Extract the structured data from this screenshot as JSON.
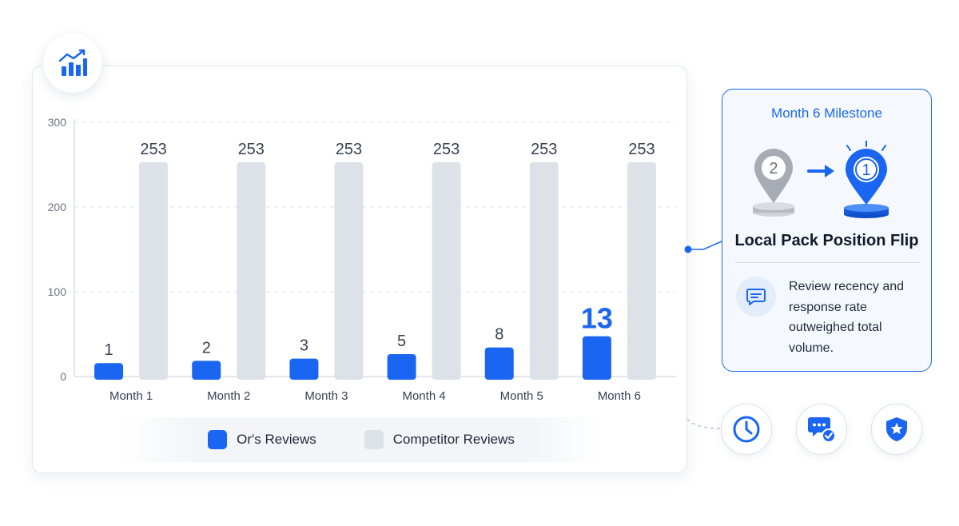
{
  "chart_data": {
    "type": "bar",
    "categories": [
      "Month 1",
      "Month 2",
      "Month 3",
      "Month 4",
      "Month 5",
      "Month 6"
    ],
    "series": [
      {
        "name": "Or's Reviews",
        "values": [
          1,
          2,
          3,
          5,
          8,
          13
        ],
        "color": "#1a66f2"
      },
      {
        "name": "Competitor Reviews",
        "values": [
          253,
          253,
          253,
          253,
          253,
          253
        ],
        "color": "#dde1e8"
      }
    ],
    "ylim": [
      0,
      300
    ],
    "yticks": [
      0,
      100,
      200,
      300
    ],
    "grid": true,
    "legend": "bottom"
  },
  "chart_icon": "trending-bar-chart-icon",
  "milestone": {
    "title": "Month 6 Milestone",
    "from_rank": "2",
    "to_rank": "1",
    "heading": "Local Pack Position Flip",
    "note": "Review recency and response rate outweighed total volume.",
    "note_icon": "chat-bubble-icon"
  },
  "feature_icons": [
    "clock-icon",
    "chat-check-icon",
    "shield-star-icon"
  ],
  "colors": {
    "accent": "#1a66f2",
    "competitor": "#dde1e8"
  }
}
